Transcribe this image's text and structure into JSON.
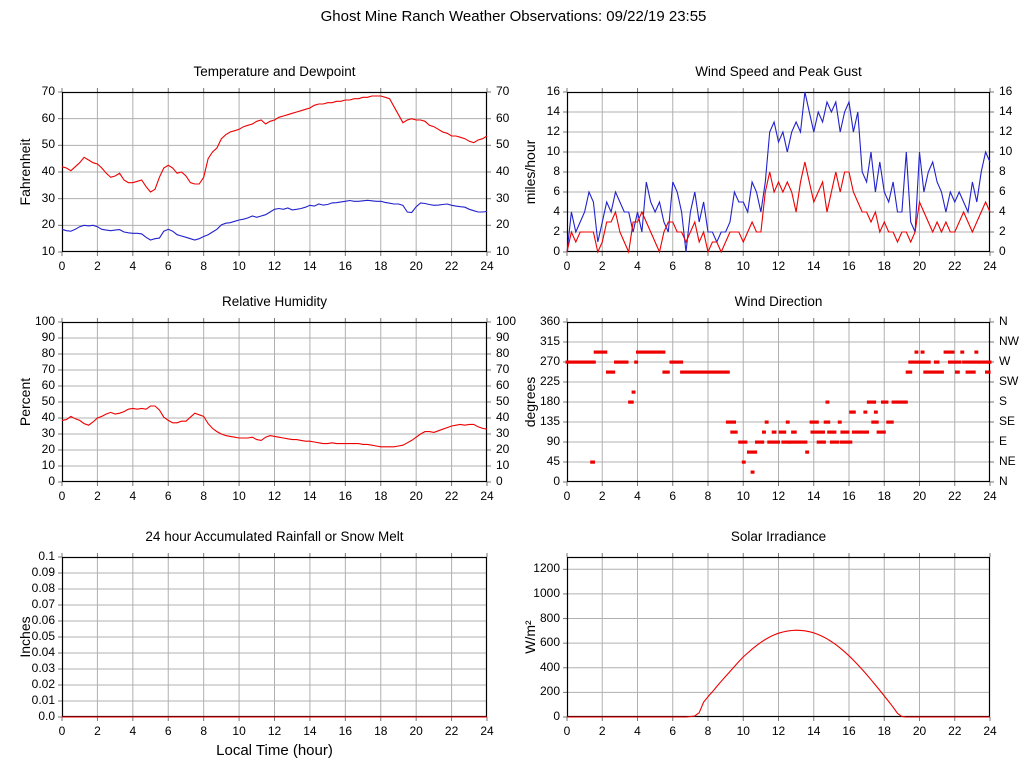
{
  "page_title": "Ghost Mine Ranch Weather Observations: 09/22/19 23:55",
  "colors": {
    "red": "#ee0000",
    "blue": "#2222cc",
    "grid": "#b0b0b0",
    "axis": "#000000",
    "tick": "#777777"
  },
  "chart_data": [
    {
      "type": "line",
      "title": "Temperature and Dewpoint",
      "ylabel": "Fahrenheit",
      "xlim": [
        0,
        24
      ],
      "xticks": [
        0,
        2,
        4,
        6,
        8,
        10,
        12,
        14,
        16,
        18,
        20,
        22,
        24
      ],
      "ylim": [
        10,
        70
      ],
      "yticks": [
        10,
        20,
        30,
        40,
        50,
        60,
        70
      ],
      "mirror_right": true,
      "series": [
        {
          "name": "temperature",
          "color": "red",
          "x0": 0,
          "dx": 0.25,
          "y": [
            42,
            41.5,
            40.5,
            42,
            43.5,
            45.5,
            44.5,
            43.5,
            43,
            41.5,
            39.5,
            38,
            38.5,
            39.5,
            37,
            36,
            36,
            36.5,
            37,
            34.5,
            32.5,
            33.5,
            38,
            41.5,
            42.5,
            41.5,
            39.5,
            40,
            38.5,
            36,
            35.5,
            35.5,
            38,
            45,
            47.5,
            49,
            52.5,
            54,
            55,
            55.5,
            56,
            57,
            57.5,
            58,
            59,
            59.5,
            58,
            59,
            59.5,
            60.5,
            61,
            61.5,
            62,
            62.5,
            63,
            63.5,
            64,
            65,
            65.5,
            65.5,
            66,
            66,
            66.5,
            66.5,
            67,
            67,
            67.5,
            67.5,
            68,
            68,
            68.5,
            68.5,
            68.5,
            68,
            67.5,
            64.5,
            61.5,
            58.5,
            59.5,
            60,
            59.5,
            59.5,
            59,
            57.5,
            57,
            56,
            55,
            54.5,
            53.5,
            53.5,
            53,
            52.5,
            51.5,
            51,
            52,
            52.5,
            53.5
          ]
        },
        {
          "name": "dewpoint",
          "color": "blue",
          "x0": 0,
          "dx": 0.25,
          "y": [
            18.5,
            18,
            17.8,
            18.5,
            19.5,
            20,
            19.8,
            20,
            19.5,
            18.5,
            18.2,
            18,
            18.2,
            18.4,
            17.5,
            17.2,
            17,
            17,
            16.8,
            15.5,
            14.5,
            15,
            15.2,
            17.8,
            18.5,
            17.8,
            16.5,
            16,
            15.5,
            15,
            14.5,
            15,
            15.8,
            16.5,
            17.5,
            18.5,
            20.2,
            20.8,
            21,
            21.5,
            22,
            22.3,
            22.8,
            23.5,
            23,
            23.5,
            24,
            25,
            26,
            26.3,
            26,
            26.5,
            25.8,
            26,
            26.3,
            26.8,
            27.5,
            27.2,
            28,
            27.6,
            27.8,
            28.4,
            28.5,
            28.8,
            29,
            29.3,
            29,
            29,
            29.2,
            29.4,
            29.2,
            29,
            29,
            28.6,
            28.3,
            28,
            28,
            27.5,
            25,
            24.8,
            27,
            28.4,
            28.2,
            27.8,
            27.5,
            27.6,
            27.8,
            28,
            27.5,
            27.2,
            27,
            26.8,
            26,
            25.5,
            25,
            25,
            25.2
          ]
        }
      ]
    },
    {
      "type": "line",
      "title": "Wind Speed and Peak Gust",
      "ylabel": "miles/hour",
      "xlim": [
        0,
        24
      ],
      "xticks": [
        0,
        2,
        4,
        6,
        8,
        10,
        12,
        14,
        16,
        18,
        20,
        22,
        24
      ],
      "ylim": [
        0,
        16
      ],
      "yticks": [
        0,
        2,
        4,
        6,
        8,
        10,
        12,
        14,
        16
      ],
      "mirror_right": true,
      "series": [
        {
          "name": "peak-gust",
          "color": "blue",
          "x0": 0,
          "dx": 0.25,
          "y": [
            0,
            4,
            2,
            3,
            4,
            6,
            5,
            1,
            3,
            5,
            4,
            6,
            5,
            4,
            4,
            2,
            4,
            2,
            7,
            5,
            4,
            5,
            3,
            2,
            7,
            6,
            4,
            0,
            4,
            6,
            3,
            5,
            2,
            2,
            1,
            2,
            2,
            3,
            6,
            5,
            5,
            4,
            7,
            6,
            4,
            7,
            12,
            13,
            11,
            12,
            10,
            12,
            13,
            12,
            16,
            14,
            12,
            14,
            13,
            15,
            14,
            15,
            12,
            14,
            15,
            12,
            14,
            8,
            7,
            10,
            6,
            9,
            6,
            5,
            7,
            4,
            4,
            10,
            3,
            2,
            10,
            6,
            8,
            9,
            7,
            6,
            4,
            6,
            5,
            6,
            5,
            4,
            7,
            5,
            8,
            10,
            9
          ]
        },
        {
          "name": "wind-speed",
          "color": "red",
          "x0": 0,
          "dx": 0.25,
          "y": [
            0,
            2,
            1,
            2,
            2,
            2,
            2,
            0,
            1,
            3,
            3,
            4,
            2,
            1,
            0,
            3,
            3,
            4,
            3,
            2,
            1,
            0,
            2,
            3,
            3,
            2,
            2,
            1,
            2,
            3,
            1,
            2,
            0,
            1,
            1,
            0,
            1,
            2,
            2,
            2,
            1,
            2,
            3,
            2,
            2,
            6,
            8,
            6,
            7,
            6,
            7,
            6,
            4,
            7,
            9,
            7,
            5,
            6,
            7,
            4,
            6,
            8,
            6,
            8,
            8,
            6,
            5,
            4,
            4,
            3,
            4,
            2,
            3,
            2,
            2,
            1,
            2,
            2,
            1,
            2,
            5,
            4,
            3,
            2,
            3,
            2,
            3,
            2,
            2,
            3,
            4,
            3,
            2,
            3,
            4,
            5,
            4
          ]
        }
      ]
    },
    {
      "type": "line",
      "title": "Relative Humidity",
      "ylabel": "Percent",
      "xlim": [
        0,
        24
      ],
      "xticks": [
        0,
        2,
        4,
        6,
        8,
        10,
        12,
        14,
        16,
        18,
        20,
        22,
        24
      ],
      "ylim": [
        0,
        100
      ],
      "yticks": [
        0,
        10,
        20,
        30,
        40,
        50,
        60,
        70,
        80,
        90,
        100
      ],
      "mirror_right": true,
      "series": [
        {
          "name": "relative-humidity",
          "color": "red",
          "x0": 0,
          "dx": 0.25,
          "y": [
            38.5,
            39,
            41,
            39.5,
            38.5,
            36.5,
            35.5,
            37.5,
            40,
            41,
            42.5,
            43.5,
            42.5,
            43,
            44,
            45.5,
            46,
            45.5,
            46,
            45.5,
            47.5,
            47.5,
            45,
            40.5,
            38.5,
            37,
            37,
            38,
            38,
            40.5,
            43,
            42,
            41,
            36.5,
            33.5,
            31.5,
            30,
            29,
            28.5,
            28,
            27.5,
            27.5,
            27.5,
            28,
            26.5,
            26,
            28,
            29,
            28.5,
            28,
            27.5,
            27,
            26.5,
            26.5,
            26,
            25.5,
            25.5,
            25,
            24.5,
            24,
            24,
            24.5,
            24,
            24,
            24,
            24,
            24,
            24,
            23.5,
            23.5,
            23,
            22.5,
            22,
            22,
            22,
            22,
            22.5,
            23,
            24.5,
            26,
            28,
            30,
            31.5,
            31.5,
            31,
            32,
            33,
            34,
            35,
            35.5,
            36,
            35.5,
            36,
            36,
            34.5,
            33.5,
            33
          ]
        }
      ]
    },
    {
      "type": "scatter",
      "title": "Wind Direction",
      "ylabel": "degrees",
      "xlim": [
        0,
        24
      ],
      "xticks": [
        0,
        2,
        4,
        6,
        8,
        10,
        12,
        14,
        16,
        18,
        20,
        22,
        24
      ],
      "ylim": [
        0,
        360
      ],
      "yticks": [
        0,
        45,
        90,
        135,
        180,
        225,
        270,
        315,
        360
      ],
      "right_labels": [
        "N",
        "NE",
        "E",
        "SE",
        "S",
        "SW",
        "W",
        "NW",
        "N"
      ],
      "marker_color": "red",
      "runs": [
        [
          0.0,
          1.55,
          270
        ],
        [
          1.4,
          1.5,
          45
        ],
        [
          1.6,
          2.2,
          292.5
        ],
        [
          2.3,
          2.65,
          247.5
        ],
        [
          2.75,
          3.4,
          270
        ],
        [
          3.55,
          3.7,
          180
        ],
        [
          3.75,
          3.8,
          202.5
        ],
        [
          3.9,
          3.95,
          270
        ],
        [
          4.0,
          5.5,
          292.5
        ],
        [
          5.5,
          5.75,
          247.5
        ],
        [
          5.9,
          6.5,
          270
        ],
        [
          6.5,
          9.15,
          247.5
        ],
        [
          9.1,
          9.5,
          135
        ],
        [
          9.35,
          9.6,
          112.5
        ],
        [
          9.8,
          10.15,
          90
        ],
        [
          10.0,
          10.05,
          45
        ],
        [
          10.3,
          10.45,
          67.5
        ],
        [
          10.5,
          10.55,
          22.5
        ],
        [
          10.6,
          10.7,
          67.5
        ],
        [
          10.75,
          11.1,
          90
        ],
        [
          11.15,
          11.2,
          112.5
        ],
        [
          11.3,
          11.35,
          135
        ],
        [
          11.45,
          12.0,
          90
        ],
        [
          11.7,
          11.8,
          112.5
        ],
        [
          12.1,
          12.35,
          112.5
        ],
        [
          12.25,
          12.6,
          90
        ],
        [
          12.5,
          12.55,
          135
        ],
        [
          12.8,
          12.95,
          112.5
        ],
        [
          12.65,
          13.55,
          90
        ],
        [
          13.6,
          13.65,
          67.5
        ],
        [
          13.85,
          14.2,
          135
        ],
        [
          13.9,
          14.55,
          112.5
        ],
        [
          14.25,
          14.6,
          90
        ],
        [
          14.65,
          14.85,
          135
        ],
        [
          14.75,
          14.8,
          180
        ],
        [
          14.85,
          15.2,
          112.5
        ],
        [
          15.0,
          15.35,
          90
        ],
        [
          15.45,
          15.5,
          135
        ],
        [
          15.55,
          16.1,
          90
        ],
        [
          15.6,
          15.95,
          112.5
        ],
        [
          16.1,
          16.3,
          157.5
        ],
        [
          16.25,
          17.05,
          112.5
        ],
        [
          16.9,
          16.95,
          157.5
        ],
        [
          17.1,
          17.45,
          180
        ],
        [
          17.35,
          17.6,
          135
        ],
        [
          17.5,
          17.55,
          157.5
        ],
        [
          17.65,
          18.0,
          112.5
        ],
        [
          17.9,
          18.15,
          180
        ],
        [
          18.2,
          18.45,
          135
        ],
        [
          18.5,
          19.25,
          180
        ],
        [
          19.3,
          19.5,
          247.5
        ],
        [
          19.45,
          20.55,
          270
        ],
        [
          19.8,
          19.85,
          292.5
        ],
        [
          20.15,
          20.2,
          292.5
        ],
        [
          20.3,
          20.45,
          247.5
        ],
        [
          20.6,
          21.3,
          247.5
        ],
        [
          20.9,
          21.05,
          270
        ],
        [
          21.45,
          21.9,
          292.5
        ],
        [
          21.7,
          22.3,
          270
        ],
        [
          22.1,
          22.2,
          247.5
        ],
        [
          22.4,
          22.45,
          292.5
        ],
        [
          22.5,
          23.35,
          270
        ],
        [
          22.7,
          23.1,
          247.5
        ],
        [
          23.2,
          23.25,
          292.5
        ],
        [
          23.45,
          23.95,
          270
        ],
        [
          23.8,
          23.95,
          247.5
        ],
        [
          23.95,
          24.0,
          270
        ]
      ]
    },
    {
      "type": "line",
      "title": "24 hour Accumulated Rainfall or Snow Melt",
      "ylabel": "Inches",
      "xlabel": "Local Time (hour)",
      "xlim": [
        0,
        24
      ],
      "xticks": [
        0,
        2,
        4,
        6,
        8,
        10,
        12,
        14,
        16,
        18,
        20,
        22,
        24
      ],
      "ylim": [
        0,
        0.1
      ],
      "yticks": [
        0,
        0.01,
        0.02,
        0.03,
        0.04,
        0.05,
        0.06,
        0.07,
        0.08,
        0.09,
        0.1
      ],
      "ytick_labels": [
        "0.0",
        "0.01",
        "0.02",
        "0.03",
        "0.04",
        "0.05",
        "0.06",
        "0.07",
        "0.08",
        "0.09",
        "0.1"
      ],
      "series": [
        {
          "name": "rainfall",
          "color": "red",
          "x0": 0,
          "dx": 24,
          "y": [
            0,
            0
          ]
        }
      ]
    },
    {
      "type": "line",
      "title": "Solar Irradiance",
      "ylabel": "W/m²",
      "xlim": [
        0,
        24
      ],
      "xticks": [
        0,
        2,
        4,
        6,
        8,
        10,
        12,
        14,
        16,
        18,
        20,
        22,
        24
      ],
      "ylim": [
        0,
        1300
      ],
      "yticks": [
        0,
        200,
        400,
        600,
        800,
        1000,
        1200
      ],
      "series": [
        {
          "name": "solar-irradiance",
          "color": "red",
          "x0": 0,
          "dx": 0.25,
          "y": [
            0,
            0,
            0,
            0,
            0,
            0,
            0,
            0,
            0,
            0,
            0,
            0,
            0,
            0,
            0,
            0,
            0,
            0,
            0,
            0,
            0,
            0,
            0,
            0,
            0,
            0,
            0,
            0,
            3,
            8,
            35,
            120,
            165,
            205,
            248,
            290,
            330,
            370,
            410,
            450,
            488,
            520,
            552,
            580,
            607,
            630,
            650,
            667,
            681,
            691,
            698,
            703,
            705,
            704,
            700,
            693,
            683,
            670,
            654,
            635,
            613,
            588,
            560,
            530,
            497,
            462,
            425,
            386,
            345,
            303,
            260,
            216,
            171,
            126,
            80,
            30,
            3,
            0,
            0,
            0,
            0,
            0,
            0,
            0,
            0,
            0,
            0,
            0,
            0,
            0,
            0,
            0,
            0,
            0,
            0,
            0,
            0
          ]
        }
      ]
    }
  ]
}
